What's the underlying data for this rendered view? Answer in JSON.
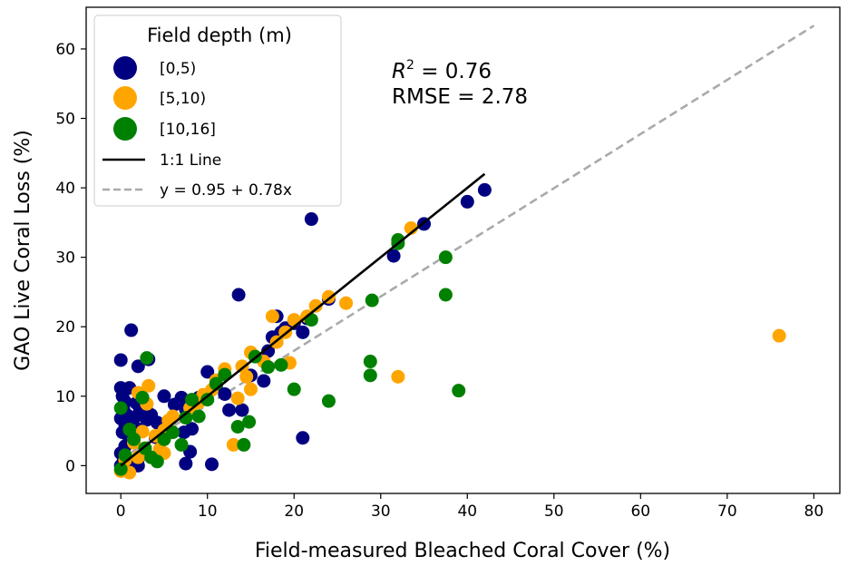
{
  "colors": {
    "depth_0_5": "#000080",
    "depth_5_10": "#ffa500",
    "depth_10_16": "#008000",
    "one_to_one": "#000000",
    "fit": "#aaaaaa"
  },
  "chart_data": {
    "type": "scatter",
    "title": "",
    "xlabel": "Field-measured Bleached Coral Cover (%)",
    "ylabel": "GAO Live Coral Loss (%)",
    "xlim": [
      -4,
      83
    ],
    "ylim": [
      -4,
      66
    ],
    "xticks": [
      0,
      10,
      20,
      30,
      40,
      50,
      60,
      70,
      80
    ],
    "yticks": [
      0,
      10,
      20,
      30,
      40,
      50,
      60
    ],
    "grid": false,
    "legend": {
      "title": "Field depth (m)",
      "placement": "top-left",
      "entries": [
        "[0,5)",
        "[5,10)",
        "[10,16]",
        "1:1 Line",
        "y = 0.95 + 0.78x"
      ]
    },
    "annotations": {
      "r2_prefix": "R",
      "r2_exp": "2",
      "r2_value": " = 0.76",
      "rmse": "RMSE = 2.78"
    },
    "lines": [
      {
        "name": "1:1 Line",
        "style": "solid",
        "x": [
          0,
          42
        ],
        "y": [
          0,
          42
        ]
      },
      {
        "name": "y = 0.95 + 0.78x",
        "style": "dashed",
        "x": [
          0,
          80
        ],
        "y": [
          0.95,
          63.35
        ]
      }
    ],
    "series": [
      {
        "name": "[0,5)",
        "points": [
          [
            0,
            15.2
          ],
          [
            1.2,
            19.5
          ],
          [
            2,
            14.3
          ],
          [
            3.2,
            15.3
          ],
          [
            0,
            11.2
          ],
          [
            1,
            11.2
          ],
          [
            0.2,
            10
          ],
          [
            0.5,
            9.2
          ],
          [
            1.8,
            9
          ],
          [
            0.3,
            8.2
          ],
          [
            0.8,
            7.2
          ],
          [
            2.2,
            7.9
          ],
          [
            2.9,
            8.3
          ],
          [
            0,
            6.8
          ],
          [
            0.5,
            5.9
          ],
          [
            1.5,
            6.8
          ],
          [
            0.2,
            4.8
          ],
          [
            1,
            3.9
          ],
          [
            0.5,
            2.8
          ],
          [
            0,
            1.8
          ],
          [
            2,
            1
          ],
          [
            0.3,
            0.6
          ],
          [
            0,
            0
          ],
          [
            1,
            0
          ],
          [
            2,
            0
          ],
          [
            2.3,
            5.2
          ],
          [
            3,
            6.6
          ],
          [
            3.5,
            7.3
          ],
          [
            4.2,
            6.2
          ],
          [
            4,
            4.1
          ],
          [
            5,
            10
          ],
          [
            6.2,
            8.8
          ],
          [
            7,
            9.8
          ],
          [
            7.5,
            8.1
          ],
          [
            7.3,
            4.8
          ],
          [
            8.2,
            5.3
          ],
          [
            8,
            2
          ],
          [
            7.5,
            0.3
          ],
          [
            10.5,
            0.2
          ],
          [
            9,
            9.8
          ],
          [
            10,
            13.5
          ],
          [
            12,
            10.3
          ],
          [
            11,
            11.5
          ],
          [
            12.5,
            8
          ],
          [
            13.6,
            24.6
          ],
          [
            14,
            8
          ],
          [
            15,
            13
          ],
          [
            16.5,
            12.2
          ],
          [
            17,
            16.5
          ],
          [
            17.5,
            18.5
          ],
          [
            18,
            21.5
          ],
          [
            18.5,
            19.2
          ],
          [
            19,
            19.8
          ],
          [
            20,
            20.5
          ],
          [
            21,
            19.2
          ],
          [
            21.5,
            21.2
          ],
          [
            22,
            35.5
          ],
          [
            21,
            4
          ],
          [
            24,
            24
          ],
          [
            31.5,
            30.2
          ],
          [
            35,
            34.8
          ],
          [
            40,
            38
          ],
          [
            42,
            39.7
          ]
        ]
      },
      {
        "name": "[5,10)",
        "points": [
          [
            0,
            -0.8
          ],
          [
            0.5,
            0.8
          ],
          [
            1,
            -1
          ],
          [
            2,
            1.2
          ],
          [
            1.5,
            3.3
          ],
          [
            2.5,
            4.9
          ],
          [
            3,
            8.9
          ],
          [
            3.2,
            11.5
          ],
          [
            2,
            10.5
          ],
          [
            4,
            4.3
          ],
          [
            4.5,
            2.4
          ],
          [
            5,
            5.1
          ],
          [
            5.5,
            6.5
          ],
          [
            5,
            1.8
          ],
          [
            6,
            7.1
          ],
          [
            8,
            8.3
          ],
          [
            9,
            9.1
          ],
          [
            9.5,
            10.2
          ],
          [
            10.5,
            10.9
          ],
          [
            11,
            12.3
          ],
          [
            12,
            13.9
          ],
          [
            13,
            3
          ],
          [
            13.5,
            9.7
          ],
          [
            14,
            14.3
          ],
          [
            14.5,
            12.8
          ],
          [
            15,
            16.3
          ],
          [
            15,
            11
          ],
          [
            16.5,
            15
          ],
          [
            17.5,
            21.5
          ],
          [
            18,
            17.8
          ],
          [
            19,
            19.2
          ],
          [
            19.5,
            14.8
          ],
          [
            20,
            21
          ],
          [
            21.5,
            21.5
          ],
          [
            22.5,
            23
          ],
          [
            24,
            24.3
          ],
          [
            26,
            23.4
          ],
          [
            32,
            12.8
          ],
          [
            33.5,
            34.2
          ],
          [
            76,
            18.7
          ]
        ]
      },
      {
        "name": "[10,16]",
        "points": [
          [
            0,
            8.3
          ],
          [
            1,
            5.2
          ],
          [
            1.5,
            3.8
          ],
          [
            2.5,
            9.8
          ],
          [
            3,
            15.5
          ],
          [
            2.8,
            2.5
          ],
          [
            3.5,
            1.2
          ],
          [
            4.2,
            0.6
          ],
          [
            5,
            3.8
          ],
          [
            6,
            4.8
          ],
          [
            7,
            3
          ],
          [
            7.5,
            6.9
          ],
          [
            8.2,
            9.5
          ],
          [
            9,
            7.1
          ],
          [
            10,
            9.5
          ],
          [
            11,
            11.8
          ],
          [
            12,
            13.1
          ],
          [
            13.5,
            5.6
          ],
          [
            14.2,
            3
          ],
          [
            14.8,
            6.3
          ],
          [
            15.5,
            15.7
          ],
          [
            17,
            14.2
          ],
          [
            18.5,
            14.5
          ],
          [
            20,
            11
          ],
          [
            22,
            21
          ],
          [
            24,
            9.3
          ],
          [
            29,
            23.8
          ],
          [
            28.8,
            15
          ],
          [
            28.8,
            13
          ],
          [
            32,
            32
          ],
          [
            32,
            32.5
          ],
          [
            37.5,
            30
          ],
          [
            37.5,
            24.6
          ],
          [
            39,
            10.8
          ],
          [
            0,
            -0.5
          ],
          [
            0.5,
            1.5
          ]
        ]
      }
    ]
  }
}
